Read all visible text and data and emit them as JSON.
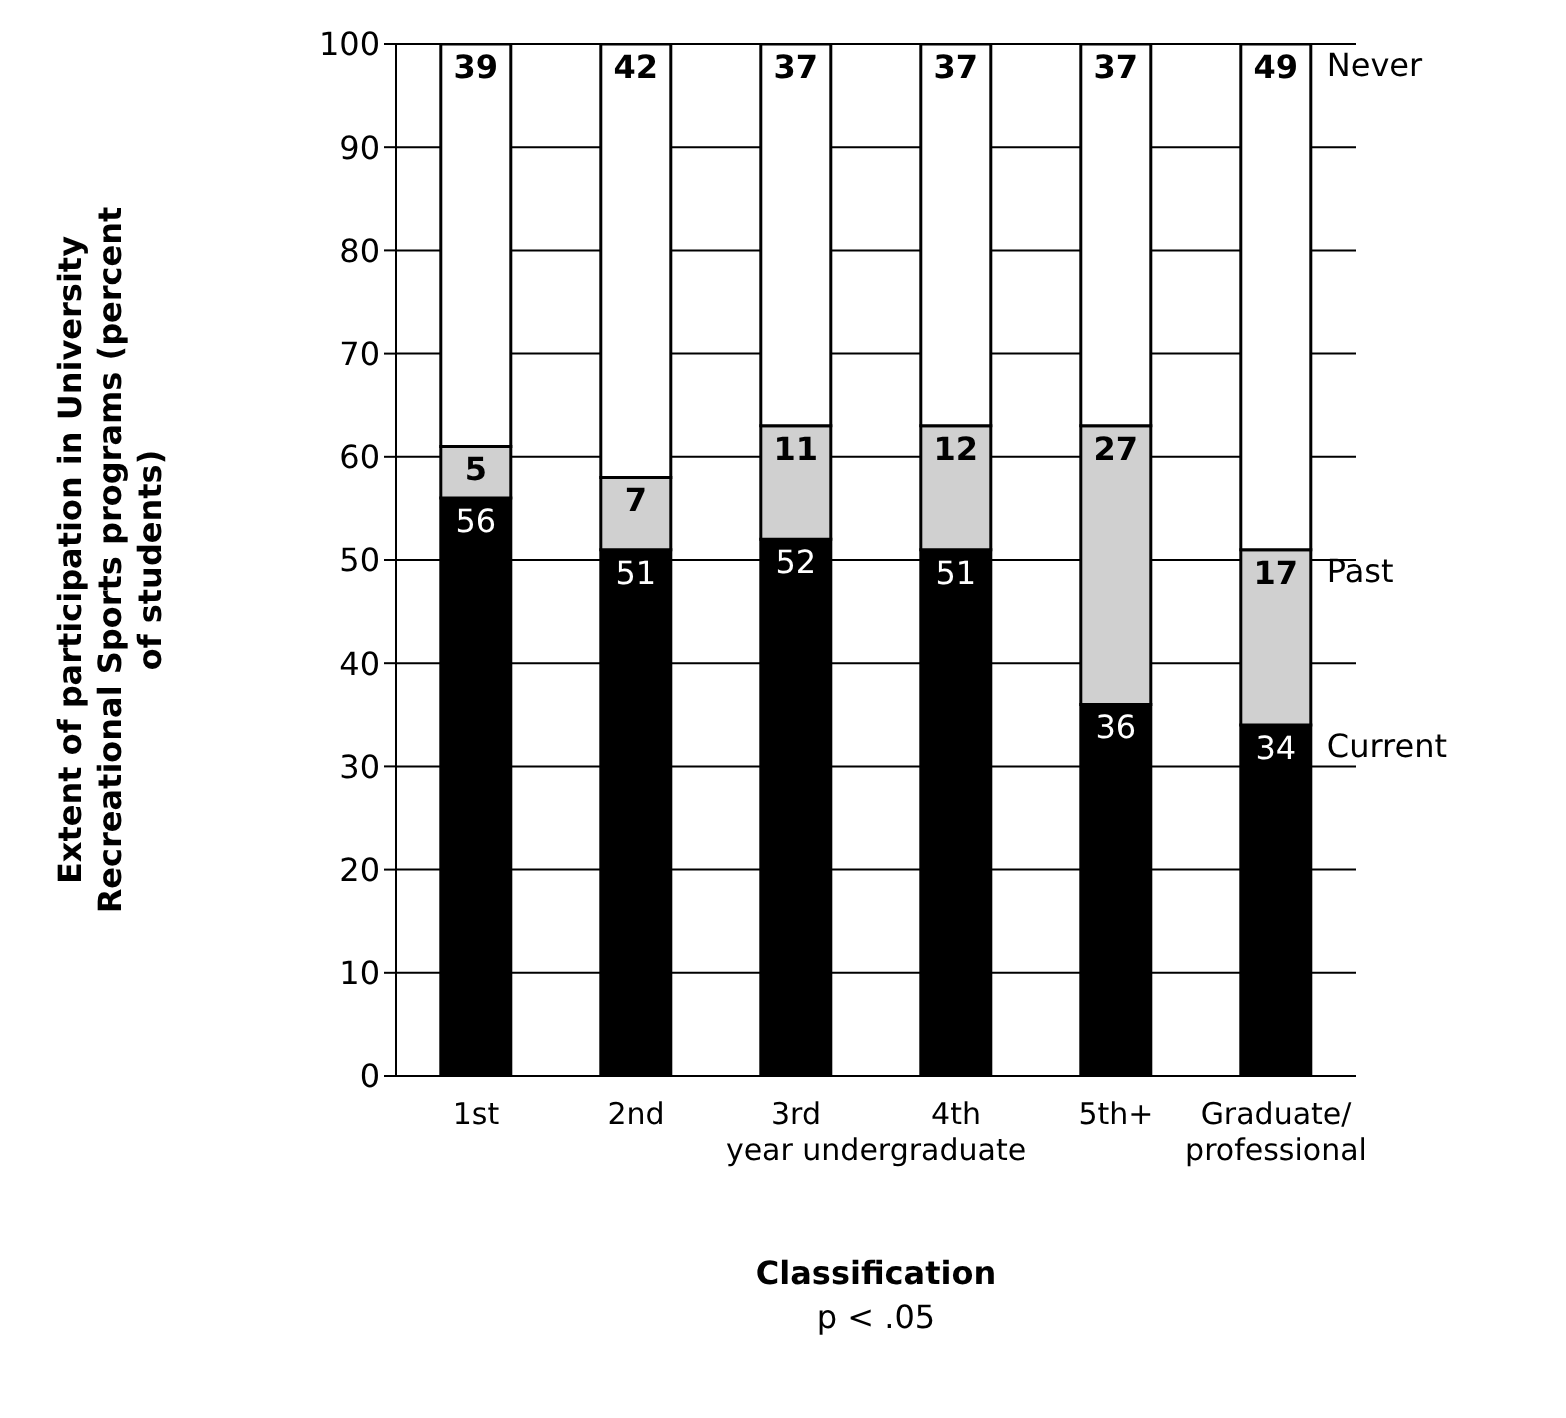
{
  "chart_data": {
    "type": "bar",
    "stacked": true,
    "xlabel": "Classification",
    "ylabel": "Extent of participation in University Recreational Sports programs (percent of students)",
    "categories": [
      "1st",
      "2nd",
      "3rd",
      "4th",
      "5th+",
      "Graduate/professional"
    ],
    "series": [
      {
        "name": "Current",
        "color": "#000000",
        "values": [
          56,
          51,
          52,
          51,
          36,
          34
        ]
      },
      {
        "name": "Past",
        "color": "#d0d0d0",
        "values": [
          5,
          7,
          11,
          12,
          27,
          17
        ]
      },
      {
        "name": "Never",
        "color": "#ffffff",
        "values": [
          39,
          42,
          37,
          37,
          37,
          49
        ]
      }
    ],
    "ylim": [
      0,
      100
    ],
    "yticks": [
      0,
      10,
      20,
      30,
      40,
      50,
      60,
      70,
      80,
      90,
      100
    ],
    "grid": "y",
    "legend": false,
    "data_labels": true,
    "annotations": [
      "year undergraduate",
      "p < .05"
    ]
  }
}
